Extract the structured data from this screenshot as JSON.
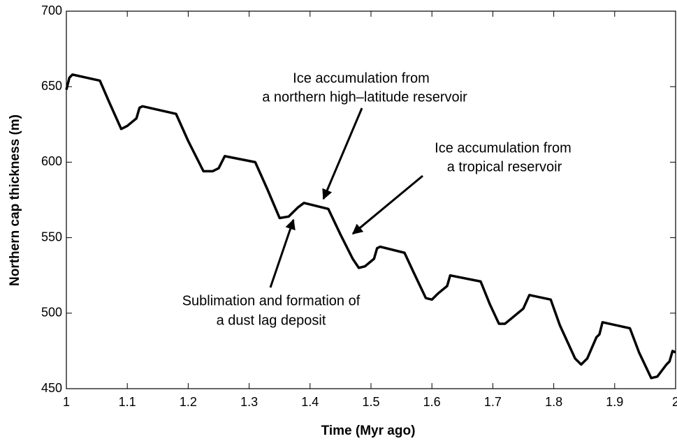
{
  "chart_data": {
    "type": "line",
    "xlabel": "Time (Myr ago)",
    "ylabel": "Northern cap thickness (m)",
    "xlim": [
      1,
      2
    ],
    "xticks": [
      1,
      1.1,
      1.2,
      1.3,
      1.4,
      1.5,
      1.6,
      1.7,
      1.8,
      1.9,
      2
    ],
    "ylim": [
      450,
      700
    ],
    "yticks": [
      450,
      500,
      550,
      600,
      650,
      700
    ],
    "series": [
      {
        "color": "#000000",
        "x": [
          1.0,
          1.005,
          1.01,
          1.055,
          1.07,
          1.09,
          1.1,
          1.115,
          1.12,
          1.125,
          1.18,
          1.2,
          1.225,
          1.24,
          1.25,
          1.26,
          1.31,
          1.33,
          1.35,
          1.365,
          1.38,
          1.39,
          1.43,
          1.45,
          1.47,
          1.48,
          1.49,
          1.505,
          1.51,
          1.515,
          1.555,
          1.57,
          1.59,
          1.6,
          1.61,
          1.625,
          1.63,
          1.68,
          1.695,
          1.71,
          1.72,
          1.75,
          1.76,
          1.795,
          1.81,
          1.835,
          1.845,
          1.855,
          1.87,
          1.875,
          1.88,
          1.925,
          1.94,
          1.96,
          1.97,
          1.985,
          1.99,
          1.995,
          2.0
        ],
        "values": [
          648,
          656,
          658,
          654,
          640,
          622,
          624,
          629,
          636,
          637,
          632,
          614,
          594,
          594,
          596,
          604,
          600,
          582,
          563,
          564,
          570,
          573,
          569,
          552,
          536,
          530,
          531,
          536,
          543,
          544,
          540,
          527,
          510,
          509,
          513,
          518,
          525,
          521,
          506,
          493,
          493,
          503,
          512,
          509,
          492,
          470,
          466,
          470,
          484,
          486,
          494,
          490,
          474,
          457,
          458,
          466,
          468,
          475,
          474
        ]
      }
    ],
    "annotations": [
      {
        "lines": [
          "Ice accumulation from",
          "a northern high–latitude reservoir"
        ]
      },
      {
        "lines": [
          "Ice accumulation from",
          "a tropical reservoir"
        ]
      },
      {
        "lines": [
          "Sublimation and formation of",
          "a dust lag deposit"
        ]
      }
    ]
  }
}
